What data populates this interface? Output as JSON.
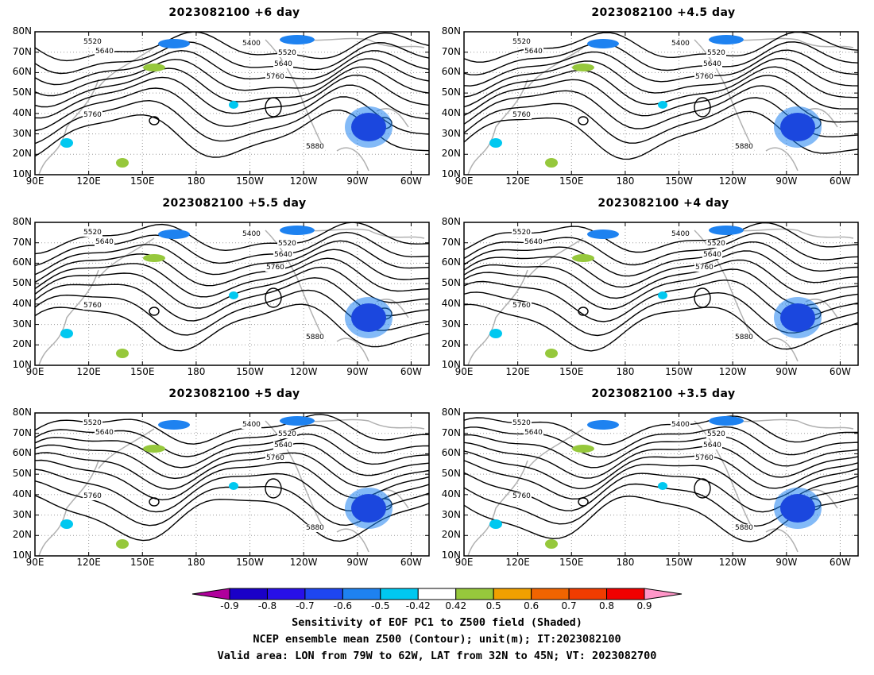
{
  "panels": [
    {
      "title": "2023082100 +6 day"
    },
    {
      "title": "2023082100 +4.5 day"
    },
    {
      "title": "2023082100 +5.5 day"
    },
    {
      "title": "2023082100 +4 day"
    },
    {
      "title": "2023082100 +5 day"
    },
    {
      "title": "2023082100 +3.5 day"
    }
  ],
  "axes": {
    "lat_labels": [
      "80N",
      "70N",
      "60N",
      "50N",
      "40N",
      "30N",
      "20N",
      "10N"
    ],
    "lon_labels": [
      "90E",
      "120E",
      "150E",
      "180",
      "150W",
      "120W",
      "90W",
      "60W"
    ],
    "lat_range": [
      10,
      80
    ],
    "lon_range_deg_east": [
      90,
      310
    ]
  },
  "contour_labels": [
    "5400",
    "5520",
    "5640",
    "5760",
    "5880"
  ],
  "colorbar": {
    "ticks": [
      "-0.9",
      "-0.8",
      "-0.7",
      "-0.6",
      "-0.5",
      "-0.42",
      "0.42",
      "0.5",
      "0.6",
      "0.7",
      "0.8",
      "0.9"
    ],
    "colors": [
      "#b0009c",
      "#1a00c8",
      "#2810e8",
      "#1e46f0",
      "#1e82f0",
      "#00c8f0",
      "#ffffff",
      "#96c83c",
      "#f0a000",
      "#f06400",
      "#f03c00",
      "#f00000",
      "#ff96c8"
    ]
  },
  "footer": {
    "line1": "Sensitivity of EOF PC1 to Z500 field (Shaded)",
    "line2": "NCEP ensemble mean Z500 (Contour); unit(m); IT:2023082100",
    "line3": "Valid area: LON from 79W to 62W, LAT from 32N to 45N; VT: 2023082700"
  }
}
